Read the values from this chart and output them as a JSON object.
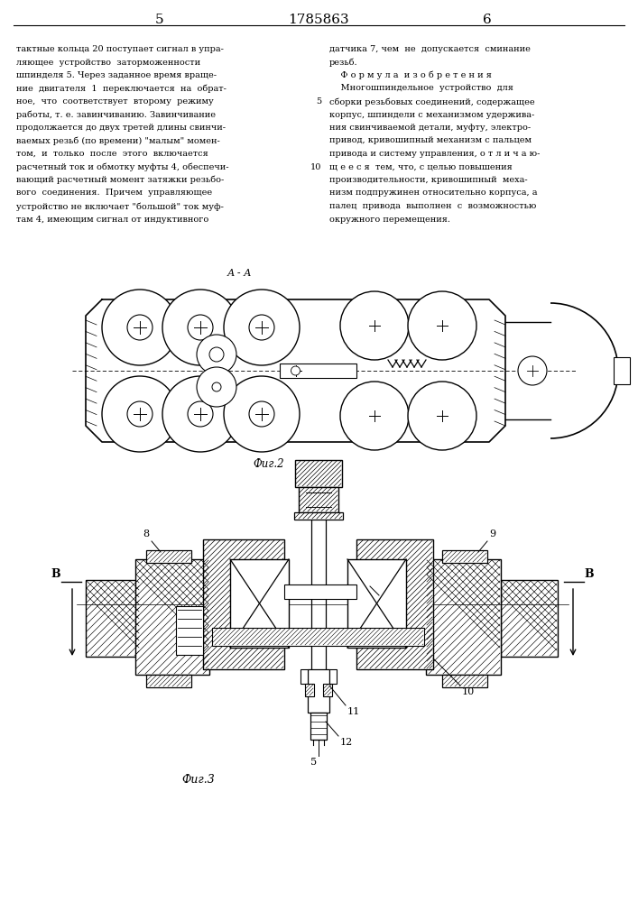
{
  "page_number_left": "5",
  "patent_number": "1785863",
  "page_number_right": "6",
  "left_column_text": "тактные кольца 20 поступает сигнал в упра-\nляющее  устройство  заторможенности\nшпинделя 5. Через заданное время враще-\nние  двигателя  1  переключается  на  обрат-\nное,  что  соответствует  второму  режиму\nработы, т. е. завинчиванию. Завинчивание\nпродолжается до двух третей длины свинчи-\nваемых резьб (по времени) \"малым\" момен-\nтом,  и  только  после  этого  включается\nрасчетный ток и обмотку муфты 4, обеспечи-\nвающий расчетный момент затяжки резьбо-\nвого  соединения.  Причем  управляющее\nустройство не включает \"большой\" ток муф-\nтам 4, имеющим сигнал от индуктивного",
  "right_column_text": "датчика 7, чем  не  допускается  сминание\nрезьб.\n    Ф о р м у л а  и з о б р е т е н и я\n    Многошпиндельное  устройство  для\nсборки резьбовых соединений, содержащее\nкорпус, шпиндели с механизмом удержива-\nния свинчиваемой детали, муфту, электро-\nпривод, кривошипный механизм с пальцем\nпривода и систему управления, о т л и ч а ю-\nщ е е с я  тем, что, с целью повышения\nпроизводительности, кривошипный  меха-\nнизм подпружинен относительно корпуса, а\nпалец  привода  выполнен  с  возможностью\nокружного перемещения.",
  "fig2_label": "Фиг.2",
  "fig3_label": "Фиг.3",
  "background_color": "#ffffff",
  "line_color": "#000000"
}
